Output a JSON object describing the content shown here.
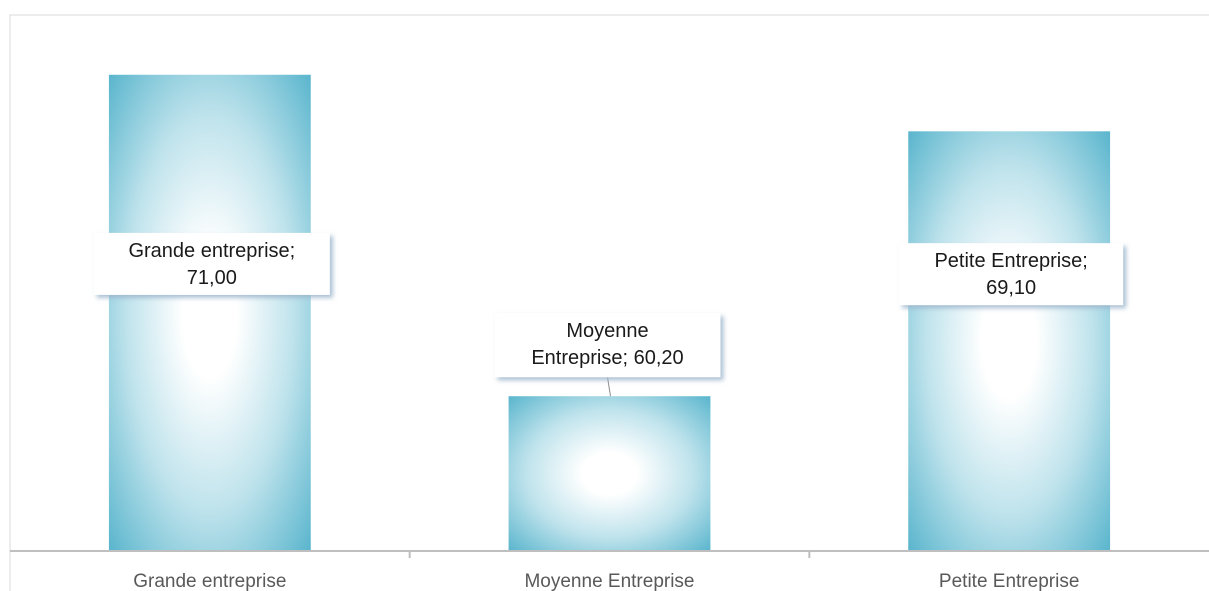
{
  "chart_data": {
    "type": "bar",
    "categories": [
      "Grande entreprise",
      "Moyenne Entreprise",
      "Petite Entreprise"
    ],
    "values": [
      71.0,
      60.2,
      69.1
    ],
    "data_labels": [
      [
        "Grande entreprise;",
        "71,00"
      ],
      [
        "Moyenne",
        "Entreprise;  60,20"
      ],
      [
        "Petite Entreprise;",
        "69,10"
      ]
    ],
    "title": "",
    "xlabel": "",
    "ylabel": "",
    "ylim": [
      55.0,
      72.0
    ],
    "grid": false,
    "legend": "none",
    "colors": {
      "bar_edge": "#4aaec8",
      "bar_center": "#ffffff",
      "axis": "#bfbfbf",
      "frame": "#d9d9d9",
      "category_text": "#595959",
      "label_text": "#1a1a1a"
    }
  }
}
